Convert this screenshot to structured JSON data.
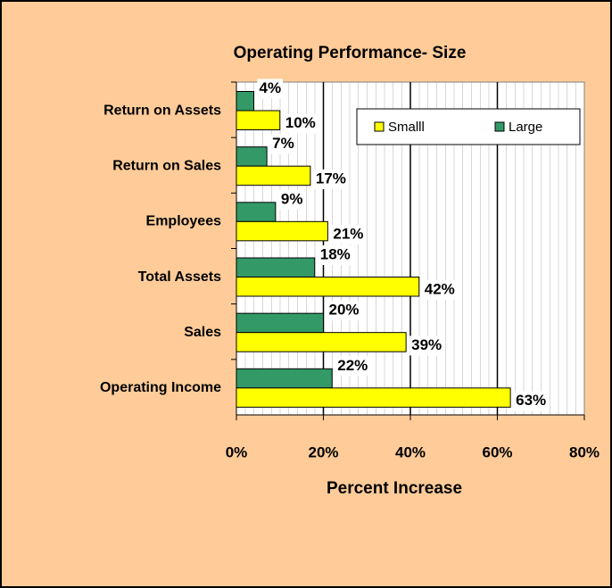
{
  "chart_data": {
    "type": "barh",
    "title": "Operating Performance- Size",
    "xlabel": "Percent Increase",
    "categories": [
      "Return on Assets",
      "Return on Sales",
      "Employees",
      "Total Assets",
      "Sales",
      "Operating Income"
    ],
    "series": [
      {
        "name": "Smalll",
        "color": "#ffff00",
        "values": [
          10,
          17,
          21,
          42,
          39,
          63
        ],
        "value_labels": [
          "10%",
          "17%",
          "21%",
          "42%",
          "39%",
          "63%"
        ]
      },
      {
        "name": "Large",
        "color": "#339966",
        "values": [
          4,
          7,
          9,
          18,
          20,
          22
        ],
        "value_labels": [
          "4%",
          "7%",
          "9%",
          "18%",
          "20%",
          "22%"
        ]
      }
    ],
    "xlim": [
      0,
      80
    ],
    "xticks": [
      {
        "value": 0,
        "label": "0%"
      },
      {
        "value": 20,
        "label": "20%"
      },
      {
        "value": 40,
        "label": "40%"
      },
      {
        "value": 60,
        "label": "60%"
      },
      {
        "value": 80,
        "label": "80%"
      }
    ],
    "grid": true,
    "legend": "upper right"
  }
}
